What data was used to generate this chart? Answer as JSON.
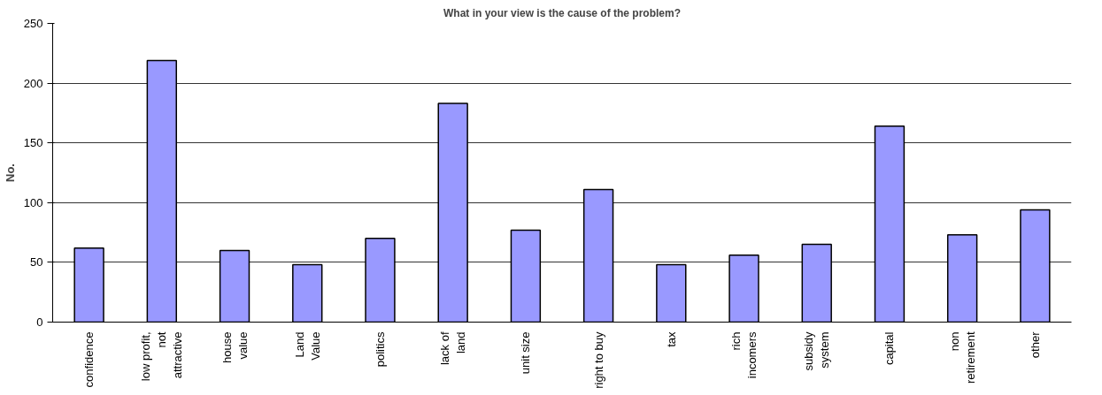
{
  "chart_data": {
    "type": "bar",
    "title": "What in your view is the cause of the problem?",
    "ylabel": "No.",
    "categories": [
      "confidence",
      "low profit,\nnot\nattractive",
      "house\nvalue",
      "Land\nValue",
      "politics",
      "lack of\nland",
      "unit size",
      "right to buy",
      "tax",
      "rich\nincomers",
      "subsidy\nsystem",
      "capital",
      "non\nretirement",
      "other"
    ],
    "values": [
      62,
      219,
      60,
      48,
      70,
      183,
      77,
      111,
      48,
      56,
      65,
      164,
      73,
      94
    ],
    "color": "#9999ff",
    "ylim": [
      0,
      250
    ],
    "yticks": [
      0,
      50,
      100,
      150,
      200,
      250
    ],
    "grid": "y"
  }
}
